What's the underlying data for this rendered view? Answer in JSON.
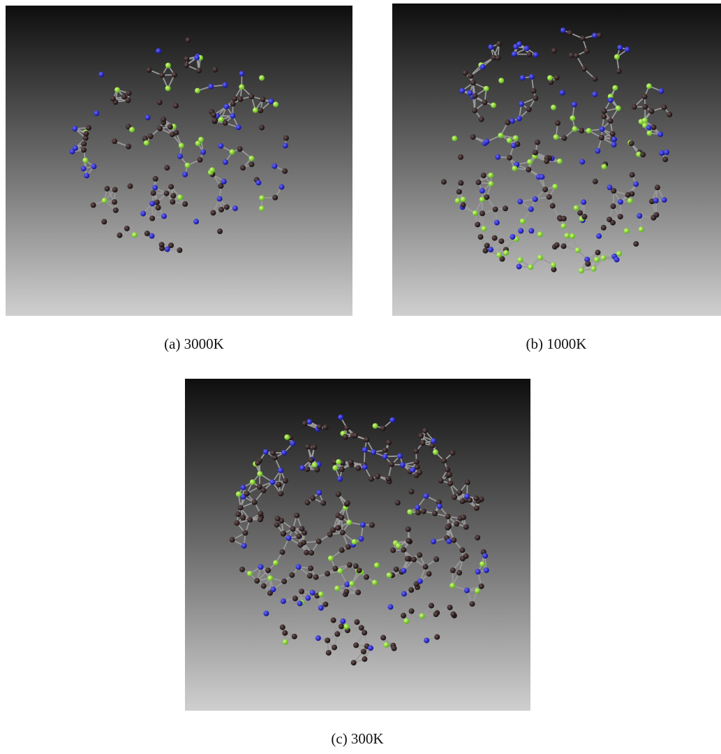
{
  "panels": [
    {
      "caption": "(a) 3000K"
    },
    {
      "caption": "(b) 1000K"
    },
    {
      "caption": "(c) 300K"
    }
  ]
}
